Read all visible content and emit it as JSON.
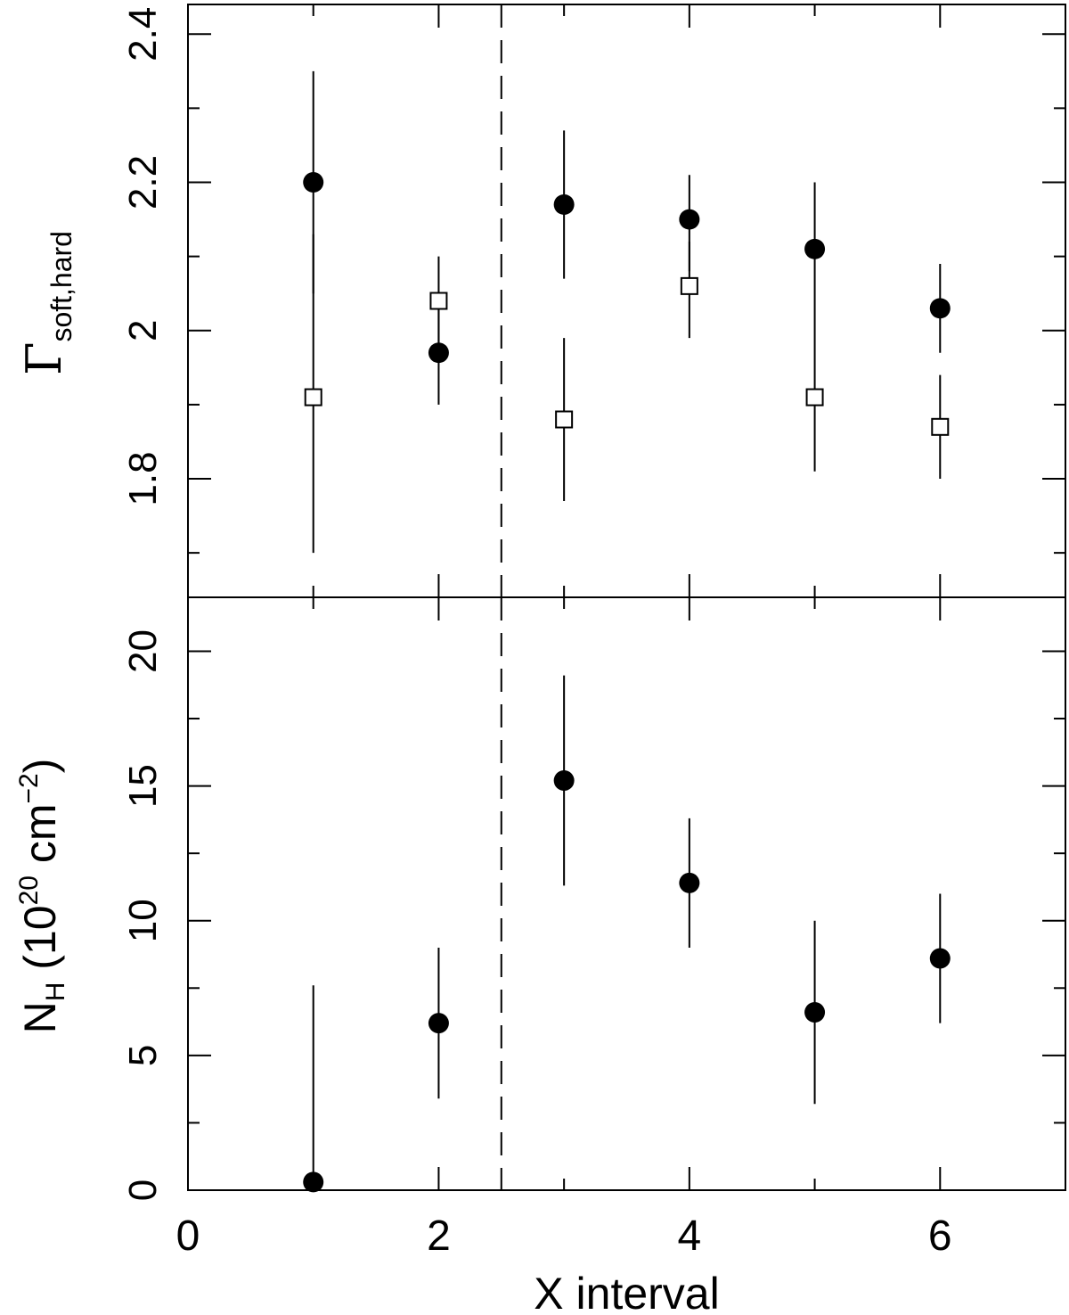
{
  "chart_data": [
    {
      "type": "scatter",
      "panel": "top",
      "xlim": [
        0,
        7
      ],
      "ylim": [
        1.64,
        2.44
      ],
      "yticks_major": [
        1.8,
        2.0,
        2.2,
        2.4
      ],
      "ytick_labels": [
        "1.8",
        "2",
        "2.2",
        "2.4"
      ],
      "ylabel": {
        "main": "Γ",
        "sub": "soft,hard"
      },
      "vline_x": 2.5,
      "series": [
        {
          "marker": "filled-circle",
          "x": [
            1,
            2,
            3,
            4,
            5,
            6
          ],
          "y": [
            2.2,
            1.97,
            2.17,
            2.15,
            2.11,
            2.03
          ],
          "yerr_low": [
            2.05,
            1.9,
            2.07,
            2.08,
            2.01,
            1.97
          ],
          "yerr_high": [
            2.35,
            2.04,
            2.27,
            2.21,
            2.2,
            2.09
          ]
        },
        {
          "marker": "open-square",
          "x": [
            1,
            2,
            3,
            4,
            5,
            6
          ],
          "y": [
            1.91,
            2.04,
            1.88,
            2.06,
            1.91,
            1.87
          ],
          "yerr_low": [
            1.7,
            1.96,
            1.77,
            1.99,
            1.81,
            1.8
          ],
          "yerr_high": [
            2.13,
            2.1,
            1.99,
            2.12,
            2.01,
            1.94
          ]
        }
      ]
    },
    {
      "type": "scatter",
      "panel": "bottom",
      "xlim": [
        0,
        7
      ],
      "ylim": [
        0,
        22
      ],
      "yticks_major": [
        0,
        5,
        10,
        15,
        20
      ],
      "ytick_labels": [
        "0",
        "5",
        "10",
        "15",
        "20"
      ],
      "xticks_major": [
        0,
        2,
        4,
        6
      ],
      "xtick_labels": [
        "0",
        "2",
        "4",
        "6"
      ],
      "xlabel": "X interval",
      "ylabel": {
        "pre": "N",
        "sub": "H",
        "mid": " (10",
        "sup": "20",
        "mid2": " cm",
        "sup2": "−2",
        "post": ")"
      },
      "vline_x": 2.5,
      "series": [
        {
          "marker": "filled-circle",
          "x": [
            1,
            2,
            3,
            4,
            5,
            6
          ],
          "y": [
            0.3,
            6.2,
            15.2,
            11.4,
            6.6,
            8.6
          ],
          "yerr_low": [
            0,
            3.4,
            11.3,
            9.0,
            3.2,
            6.2
          ],
          "yerr_high": [
            7.6,
            9.0,
            19.1,
            13.8,
            10.0,
            11.0
          ]
        }
      ]
    }
  ]
}
